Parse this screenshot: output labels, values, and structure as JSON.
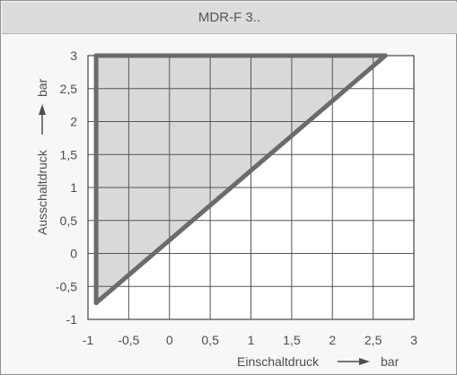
{
  "title": "MDR-F 3..",
  "chart_data": {
    "type": "area",
    "title": "MDR-F 3..",
    "xlabel": "Einschaltdruck",
    "xunit": "bar",
    "ylabel": "Ausschaltdruck",
    "yunit": "bar",
    "xlim": [
      -1,
      3
    ],
    "ylim": [
      -1,
      3
    ],
    "xticks": [
      -1,
      -0.5,
      0,
      0.5,
      1,
      1.5,
      2,
      2.5,
      3
    ],
    "yticks": [
      -1,
      -0.5,
      0,
      0.5,
      1,
      1.5,
      2,
      2.5,
      3
    ],
    "xtick_labels": [
      "-1",
      "-0,5",
      "0",
      "0,5",
      "1",
      "1,5",
      "2",
      "2,5",
      "3"
    ],
    "ytick_labels": [
      "-1",
      "-0,5",
      "0",
      "0,5",
      "1",
      "1,5",
      "2",
      "2,5",
      "3"
    ],
    "grid": true,
    "region_vertices": [
      {
        "x": -0.9,
        "y": -0.75
      },
      {
        "x": 2.65,
        "y": 3
      },
      {
        "x": -0.9,
        "y": 3
      }
    ],
    "colors": {
      "region_fill": "#d9d9d9",
      "boundary": "#6b6b6b",
      "grid": "#555555",
      "plot_background": "#ffffff"
    }
  }
}
